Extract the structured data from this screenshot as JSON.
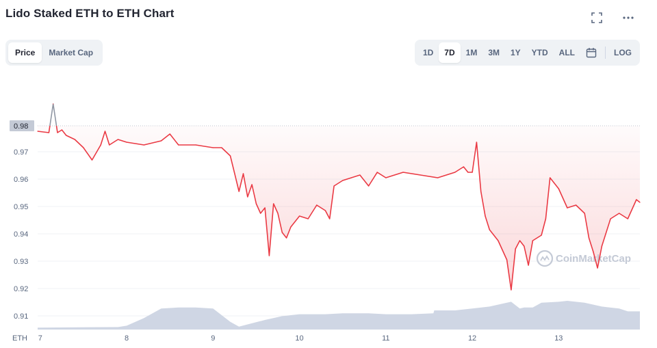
{
  "header": {
    "title": "Lido Staked ETH to ETH Chart",
    "icons": [
      "fullscreen-icon",
      "more-icon"
    ]
  },
  "tabs": [
    {
      "label": "Price",
      "active": true
    },
    {
      "label": "Market Cap",
      "active": false
    }
  ],
  "ranges": [
    {
      "label": "1D",
      "active": false
    },
    {
      "label": "7D",
      "active": true
    },
    {
      "label": "1M",
      "active": false
    },
    {
      "label": "3M",
      "active": false
    },
    {
      "label": "1Y",
      "active": false
    },
    {
      "label": "YTD",
      "active": false
    },
    {
      "label": "ALL",
      "active": false
    }
  ],
  "calendar_icon": "calendar-icon",
  "log_label": "LOG",
  "watermark": "CoinMarketCap",
  "colors": {
    "line": "#ea3943",
    "line_above_start": "#8f96a3",
    "fill": "#ea3943",
    "volume": "#cfd6e4",
    "grid": "#eff2f5",
    "ref_line": "#bfc5d0",
    "current_tag_bg": "#c4cad6"
  },
  "chart_data": {
    "type": "line",
    "title": "Lido Staked ETH to ETH Chart",
    "y_unit_label": "ETH",
    "x_ticks": [
      "7",
      "8",
      "9",
      "10",
      "11",
      "12",
      "13"
    ],
    "y_ticks": [
      "0.91",
      "0.92",
      "0.93",
      "0.94",
      "0.95",
      "0.96",
      "0.97",
      "0.98"
    ],
    "ylim": [
      0.905,
      0.998
    ],
    "xlim": [
      6.97,
      13.94
    ],
    "reference_line": {
      "label": "0.98",
      "value": 0.9795
    },
    "grid": true,
    "series": [
      {
        "x": [
          6.97,
          7.1,
          7.15,
          7.2,
          7.25,
          7.3,
          7.4,
          7.5,
          7.6,
          7.7,
          7.75,
          7.8,
          7.9,
          8.0,
          8.2,
          8.4,
          8.5,
          8.6,
          8.8,
          9.0,
          9.1,
          9.2,
          9.25,
          9.3,
          9.35,
          9.4,
          9.45,
          9.5,
          9.55,
          9.6,
          9.65,
          9.7,
          9.75,
          9.8,
          9.85,
          9.9,
          10.0,
          10.1,
          10.2,
          10.3,
          10.35,
          10.4,
          10.5,
          10.6,
          10.7,
          10.8,
          10.9,
          11.0,
          11.2,
          11.4,
          11.6,
          11.8,
          11.9,
          11.95,
          12.0,
          12.05,
          12.1,
          12.15,
          12.2,
          12.3,
          12.4,
          12.45,
          12.5,
          12.55,
          12.6,
          12.65,
          12.7,
          12.8,
          12.85,
          12.9,
          13.0,
          13.1,
          13.2,
          13.3,
          13.35,
          13.4,
          13.45,
          13.5,
          13.6,
          13.7,
          13.8,
          13.9,
          13.94
        ],
        "values": [
          0.9775,
          0.977,
          0.9875,
          0.977,
          0.978,
          0.976,
          0.9745,
          0.9715,
          0.967,
          0.9725,
          0.9775,
          0.9725,
          0.9745,
          0.9735,
          0.9725,
          0.974,
          0.9765,
          0.9725,
          0.9725,
          0.9715,
          0.9715,
          0.9685,
          0.962,
          0.9555,
          0.962,
          0.9535,
          0.958,
          0.951,
          0.9475,
          0.9495,
          0.932,
          0.951,
          0.9475,
          0.9405,
          0.9385,
          0.9425,
          0.9465,
          0.9455,
          0.9505,
          0.9485,
          0.9455,
          0.9575,
          0.9595,
          0.9605,
          0.9615,
          0.9575,
          0.9625,
          0.9605,
          0.9625,
          0.9615,
          0.9605,
          0.9625,
          0.9645,
          0.9625,
          0.9625,
          0.9735,
          0.9555,
          0.9465,
          0.9415,
          0.9375,
          0.9305,
          0.9195,
          0.9345,
          0.9375,
          0.9355,
          0.9285,
          0.9375,
          0.9395,
          0.9455,
          0.9605,
          0.9565,
          0.9495,
          0.9505,
          0.9475,
          0.9385,
          0.9335,
          0.9275,
          0.9355,
          0.9455,
          0.9475,
          0.9455,
          0.9525,
          0.9515
        ]
      }
    ],
    "volume": {
      "x": [
        6.97,
        7.9,
        8.0,
        8.2,
        8.4,
        8.6,
        8.8,
        9.0,
        9.2,
        9.3,
        9.6,
        9.8,
        10.0,
        10.3,
        10.5,
        10.8,
        11.0,
        11.3,
        11.55,
        11.56,
        11.8,
        12.0,
        12.2,
        12.4,
        12.45,
        12.55,
        12.6,
        12.7,
        12.8,
        13.0,
        13.1,
        13.3,
        13.5,
        13.7,
        13.8,
        13.94
      ],
      "values": [
        1,
        1.3,
        2,
        6,
        11,
        11.5,
        11.5,
        11,
        4,
        1.5,
        5,
        7,
        8,
        8,
        8.5,
        8.5,
        8,
        8,
        8.5,
        10,
        10,
        11,
        12,
        14,
        14.5,
        11,
        11.5,
        11.5,
        14,
        14.5,
        15,
        14,
        12,
        11,
        9.5,
        9.5
      ]
    }
  }
}
